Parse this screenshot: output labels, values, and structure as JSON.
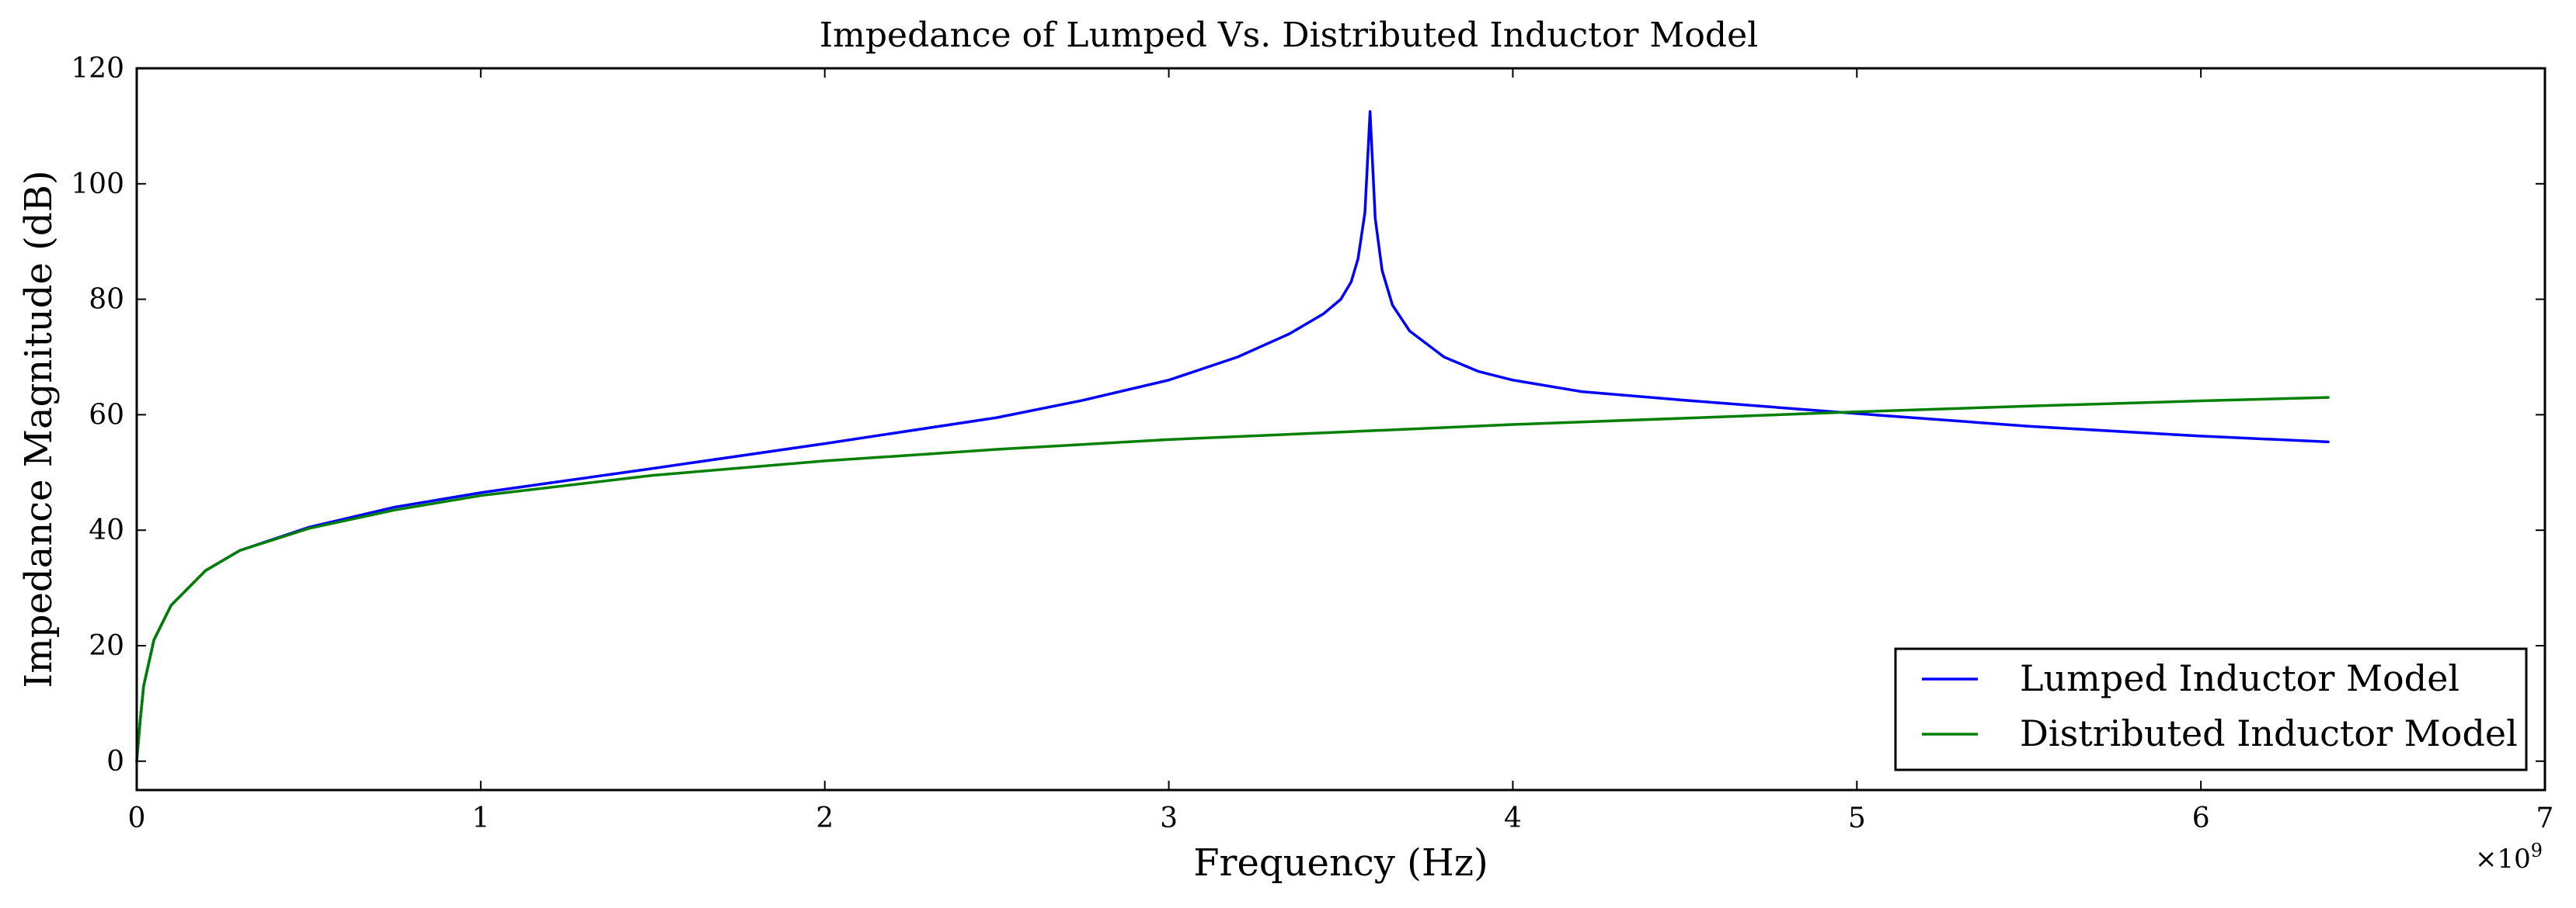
{
  "chart_data": {
    "type": "line",
    "title": "Impedance of Lumped Vs. Distributed Inductor Model",
    "xlabel": "Frequency (Hz)",
    "ylabel": "Impedance Magnitude (dB)",
    "x_multiplier_label": "×10",
    "x_multiplier_exponent": "9",
    "xlim": [
      0,
      7
    ],
    "ylim": [
      -5,
      120
    ],
    "x_ticks": [
      0,
      1,
      2,
      3,
      4,
      5,
      6,
      7
    ],
    "y_ticks": [
      0,
      20,
      40,
      60,
      80,
      100,
      120
    ],
    "x_tick_labels": [
      "0",
      "1",
      "2",
      "3",
      "4",
      "5",
      "6",
      "7"
    ],
    "y_tick_labels": [
      "0",
      "20",
      "40",
      "60",
      "80",
      "100",
      "120"
    ],
    "grid": false,
    "legend_position": "lower-right",
    "series": [
      {
        "name": "Lumped Inductor Model",
        "color": "#0000ff",
        "x": [
          0.0,
          0.01,
          0.02,
          0.05,
          0.1,
          0.2,
          0.3,
          0.5,
          0.75,
          1.0,
          1.5,
          2.0,
          2.5,
          2.75,
          3.0,
          3.2,
          3.35,
          3.45,
          3.5,
          3.53,
          3.55,
          3.57,
          3.585,
          3.6,
          3.62,
          3.65,
          3.7,
          3.8,
          3.9,
          4.0,
          4.2,
          4.5,
          5.0,
          5.5,
          6.0,
          6.37
        ],
        "y": [
          0.0,
          7.0,
          13.0,
          21.0,
          27.0,
          33.0,
          36.5,
          40.5,
          44.0,
          46.5,
          50.7,
          55.0,
          59.5,
          62.5,
          66.0,
          70.0,
          74.0,
          77.5,
          80.0,
          83.0,
          87.0,
          95.0,
          112.5,
          94.0,
          85.0,
          79.0,
          74.5,
          70.0,
          67.5,
          66.0,
          64.0,
          62.5,
          60.2,
          58.0,
          56.3,
          55.3
        ]
      },
      {
        "name": "Distributed Inductor Model",
        "color": "#007f00",
        "x": [
          0.0,
          0.01,
          0.02,
          0.05,
          0.1,
          0.2,
          0.3,
          0.5,
          0.75,
          1.0,
          1.5,
          2.0,
          2.5,
          3.0,
          3.5,
          4.0,
          4.5,
          5.0,
          5.5,
          6.0,
          6.37
        ],
        "y": [
          0.0,
          7.0,
          13.0,
          21.0,
          27.0,
          33.0,
          36.5,
          40.3,
          43.5,
          46.0,
          49.5,
          52.0,
          54.0,
          55.7,
          57.0,
          58.3,
          59.4,
          60.5,
          61.5,
          62.4,
          63.0
        ]
      }
    ]
  }
}
